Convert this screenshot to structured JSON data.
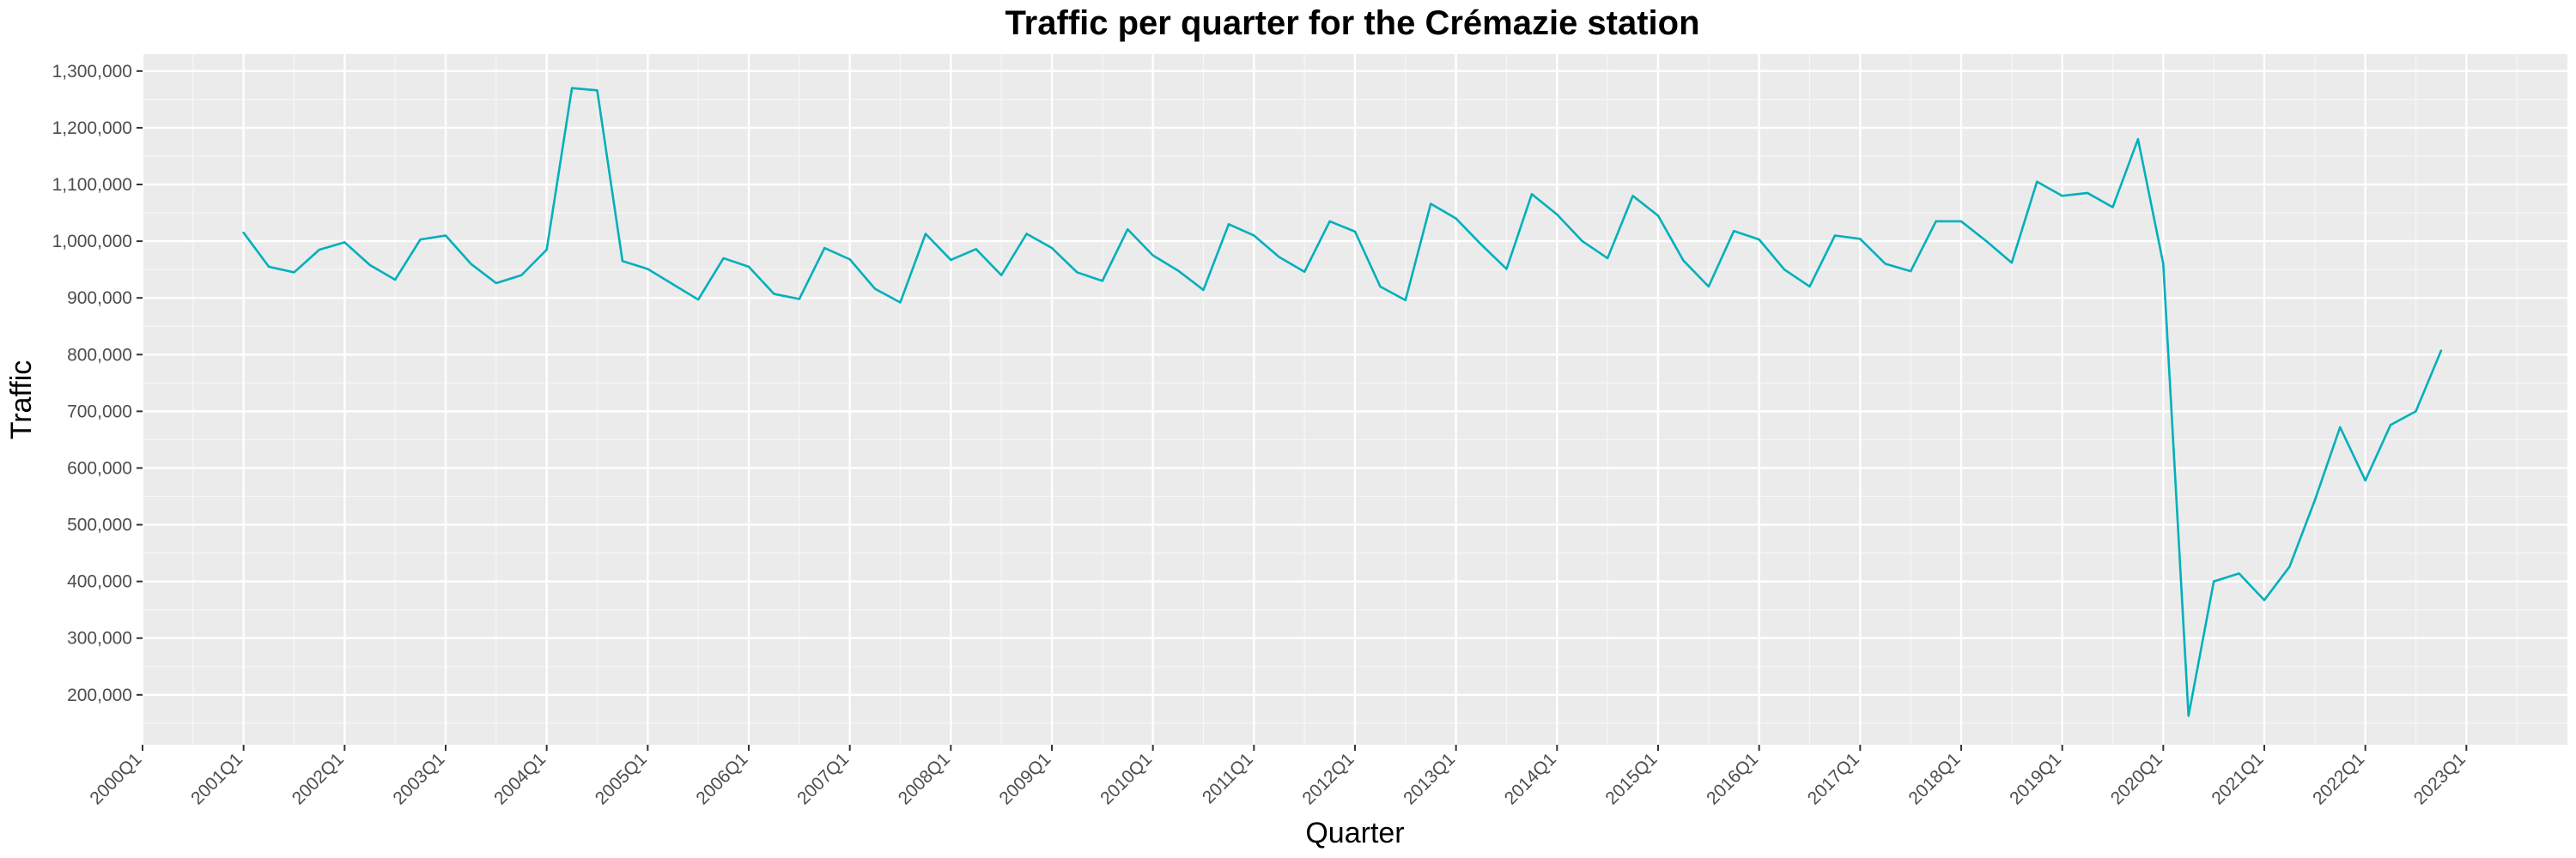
{
  "chart_data": {
    "type": "line",
    "title": "Traffic per quarter for the Crémazie station",
    "xlabel": "Quarter",
    "ylabel": "Traffic",
    "grid": true,
    "legend": "none",
    "colors": {
      "panel": "#ebebeb",
      "grid_major": "#ffffff",
      "grid_minor": "#f7f7f7",
      "line": "#00b0bb",
      "tick": "#333333"
    },
    "x_tick_labels": [
      "2000Q1",
      "2001Q1",
      "2002Q1",
      "2003Q1",
      "2004Q1",
      "2005Q1",
      "2006Q1",
      "2007Q1",
      "2008Q1",
      "2009Q1",
      "2010Q1",
      "2011Q1",
      "2012Q1",
      "2013Q1",
      "2014Q1",
      "2015Q1",
      "2016Q1",
      "2017Q1",
      "2018Q1",
      "2019Q1",
      "2020Q1",
      "2021Q1",
      "2022Q1",
      "2023Q1"
    ],
    "y_tick_labels": [
      "200,000",
      "300,000",
      "400,000",
      "500,000",
      "600,000",
      "700,000",
      "800,000",
      "900,000",
      "1,000,000",
      "1,100,000",
      "1,200,000",
      "1,300,000"
    ],
    "y_ticks": [
      200000,
      300000,
      400000,
      500000,
      600000,
      700000,
      800000,
      900000,
      1000000,
      1100000,
      1200000,
      1300000
    ],
    "x_range": [
      "2000Q1",
      "2024Q1"
    ],
    "ylim": [
      112000,
      1330000
    ],
    "series": [
      {
        "x": [
          "2001Q1",
          "2001Q2",
          "2001Q3",
          "2001Q4",
          "2002Q1",
          "2002Q2",
          "2002Q3",
          "2002Q4",
          "2003Q1",
          "2003Q2",
          "2003Q3",
          "2003Q4",
          "2004Q1",
          "2004Q2",
          "2004Q3",
          "2004Q4",
          "2005Q1",
          "2005Q2",
          "2005Q3",
          "2005Q4",
          "2006Q1",
          "2006Q2",
          "2006Q3",
          "2006Q4",
          "2007Q1",
          "2007Q2",
          "2007Q3",
          "2007Q4",
          "2008Q1",
          "2008Q2",
          "2008Q3",
          "2008Q4",
          "2009Q1",
          "2009Q2",
          "2009Q3",
          "2009Q4",
          "2010Q1",
          "2010Q2",
          "2010Q3",
          "2010Q4",
          "2011Q1",
          "2011Q2",
          "2011Q3",
          "2011Q4",
          "2012Q1",
          "2012Q2",
          "2012Q3",
          "2012Q4",
          "2013Q1",
          "2013Q2",
          "2013Q3",
          "2013Q4",
          "2014Q1",
          "2014Q2",
          "2014Q3",
          "2014Q4",
          "2015Q1",
          "2015Q2",
          "2015Q3",
          "2015Q4",
          "2016Q1",
          "2016Q2",
          "2016Q3",
          "2016Q4",
          "2017Q1",
          "2017Q2",
          "2017Q3",
          "2017Q4",
          "2018Q1",
          "2018Q2",
          "2018Q3",
          "2018Q4",
          "2019Q1",
          "2019Q2",
          "2019Q3",
          "2019Q4",
          "2020Q1",
          "2020Q2",
          "2020Q3",
          "2020Q4",
          "2021Q1",
          "2021Q2",
          "2021Q3",
          "2021Q4",
          "2022Q1",
          "2022Q2",
          "2022Q3",
          "2022Q4"
        ],
        "values": [
          1015000,
          955000,
          945000,
          985000,
          998000,
          958000,
          932000,
          1003000,
          1010000,
          960000,
          926000,
          940000,
          985000,
          1270000,
          1266000,
          965000,
          951000,
          924000,
          897000,
          970000,
          955000,
          907000,
          898000,
          988000,
          968000,
          916000,
          892000,
          1013000,
          967000,
          986000,
          940000,
          1013000,
          988000,
          945000,
          930000,
          1021000,
          975000,
          948000,
          914000,
          1030000,
          1010000,
          972000,
          946000,
          1035000,
          1017000,
          920000,
          896000,
          1066000,
          1040000,
          994000,
          951000,
          1083000,
          1047000,
          1000000,
          970000,
          1080000,
          1045000,
          966000,
          920000,
          1018000,
          1003000,
          950000,
          920000,
          1010000,
          1004000,
          960000,
          947000,
          1035000,
          1035000,
          1000000,
          962000,
          1105000,
          1080000,
          1085000,
          1060000,
          1180000,
          960000,
          163000,
          400000,
          414000,
          367000,
          426000,
          543000,
          672000,
          578000,
          676000,
          700000,
          807000
        ]
      }
    ]
  }
}
